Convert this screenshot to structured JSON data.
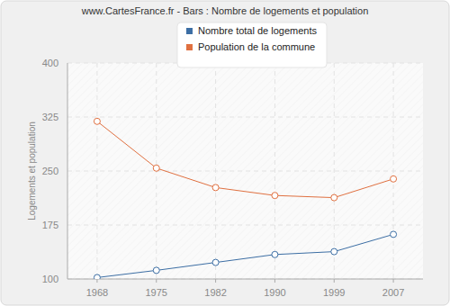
{
  "chart_data": {
    "type": "line",
    "title": "www.CartesFrance.fr - Bars : Nombre de logements et population",
    "y_label": "Logements et population",
    "categories": [
      "1968",
      "1975",
      "1982",
      "1990",
      "1999",
      "2007"
    ],
    "series": [
      {
        "name": "Nombre total de logements",
        "color": "#3c6ea4",
        "values": [
          102,
          112,
          123,
          134,
          138,
          162
        ]
      },
      {
        "name": "Population de la commune",
        "color": "#e07040",
        "values": [
          319,
          254,
          227,
          216,
          213,
          239
        ]
      }
    ],
    "ylim": [
      100,
      400
    ],
    "yticks": [
      100,
      175,
      250,
      325,
      400
    ],
    "grid": true,
    "legend": "top",
    "marker": "circle",
    "line_style": "solid"
  }
}
